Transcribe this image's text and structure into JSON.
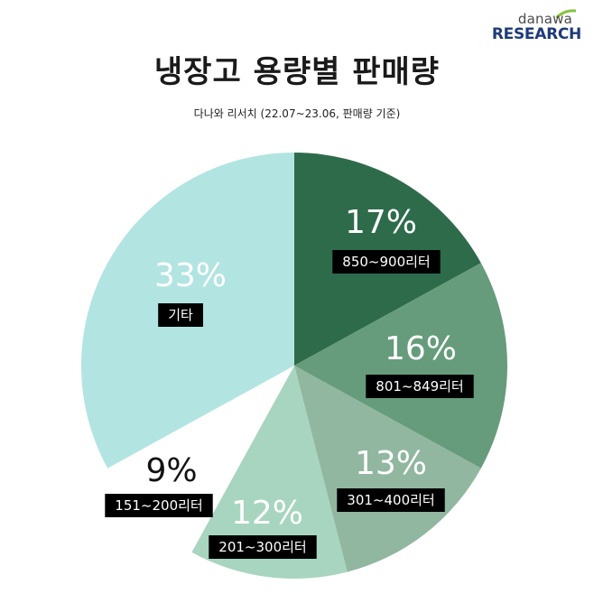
{
  "logo": {
    "top": "danawa",
    "bottom": "RESEARCH"
  },
  "title": "냉장고 용량별 판매량",
  "subtitle": "다나와 리서치 (22.07~23.06, 판매량 기준)",
  "chart_data": {
    "type": "pie",
    "title": "냉장고 용량별 판매량",
    "subtitle": "다나와 리서치 (22.07~23.06, 판매량 기준)",
    "slices": [
      {
        "label": "850~900리터",
        "value": 17,
        "value_text": "17%",
        "color": "#2e6b4b",
        "text_color": "#ffffff"
      },
      {
        "label": "801~849리터",
        "value": 16,
        "value_text": "16%",
        "color": "#669c7b",
        "text_color": "#ffffff"
      },
      {
        "label": "301~400리터",
        "value": 13,
        "value_text": "13%",
        "color": "#91b7a0",
        "text_color": "#ffffff"
      },
      {
        "label": "201~300리터",
        "value": 12,
        "value_text": "12%",
        "color": "#a8d5bf",
        "text_color": "#ffffff"
      },
      {
        "label": "151~200리터",
        "value": 9,
        "value_text": "9%",
        "color": "#ffffff",
        "text_color": "#111111"
      },
      {
        "label": "기타",
        "value": 33,
        "value_text": "33%",
        "color": "#b2e4e2",
        "text_color": "#ffffff"
      }
    ],
    "label_box_color": "#000000"
  }
}
